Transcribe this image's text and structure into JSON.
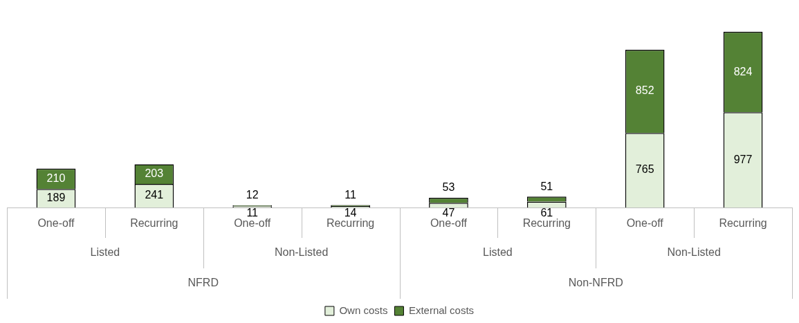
{
  "chart_data": {
    "type": "bar",
    "stacked": true,
    "data_labels": true,
    "legend": "bottom",
    "grid": false,
    "categories": [
      "One-off",
      "Recurring",
      "One-off",
      "Recurring",
      "One-off",
      "Recurring",
      "One-off",
      "Recurring"
    ],
    "series": [
      {
        "name": "Own costs",
        "color": "#e2efda",
        "values": [
          189,
          241,
          11,
          14,
          47,
          61,
          765,
          977
        ]
      },
      {
        "name": "External costs",
        "color": "#548235",
        "values": [
          210,
          203,
          12,
          11,
          53,
          51,
          852,
          824
        ]
      }
    ],
    "annotations": [
      "Listed",
      "Non-Listed",
      "Listed",
      "Non-Listed",
      "NFRD",
      "Non-NFRD"
    ]
  }
}
